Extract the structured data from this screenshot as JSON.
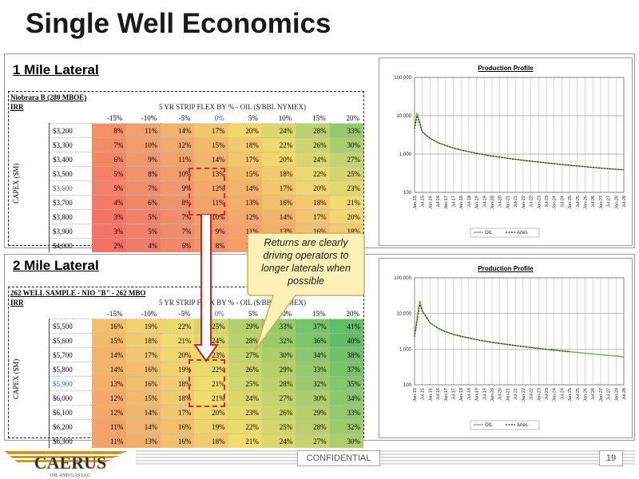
{
  "slide": {
    "title": "Single Well Economics",
    "footer": {
      "confidential": "CONFIDENTIAL",
      "page_number": "19",
      "logo_text": "CAERUS",
      "logo_subtext": "OIL AND GAS LLC"
    }
  },
  "callout": {
    "text": "Returns are clearly driving operators to longer laterals when possible"
  },
  "section1": {
    "title": "1 Mile Lateral",
    "table": {
      "name": "Niobrara B (280 MBOE)",
      "metric": "IRR",
      "flex_label": "5 YR STRIP FLEX BY % - OIL ($/BBL NYMEX)",
      "capex_label": "CAPEX ($M)",
      "columns": [
        "-15%",
        "-10%",
        "-5%",
        "0%",
        "5%",
        "10%",
        "15%",
        "20%"
      ],
      "rows": [
        {
          "capex": "$3,200",
          "values": [
            "8%",
            "11%",
            "14%",
            "17%",
            "20%",
            "24%",
            "28%",
            "33%"
          ]
        },
        {
          "capex": "$3,300",
          "values": [
            "7%",
            "10%",
            "12%",
            "15%",
            "18%",
            "22%",
            "26%",
            "30%"
          ]
        },
        {
          "capex": "$3,400",
          "values": [
            "6%",
            "9%",
            "11%",
            "14%",
            "17%",
            "20%",
            "24%",
            "27%"
          ]
        },
        {
          "capex": "$3,500",
          "values": [
            "5%",
            "8%",
            "10%",
            "13%",
            "15%",
            "18%",
            "22%",
            "25%"
          ]
        },
        {
          "capex": "$3,600",
          "values": [
            "5%",
            "7%",
            "9%",
            "12%",
            "14%",
            "17%",
            "20%",
            "23%"
          ]
        },
        {
          "capex": "$3,700",
          "values": [
            "4%",
            "6%",
            "8%",
            "11%",
            "13%",
            "16%",
            "18%",
            "21%"
          ]
        },
        {
          "capex": "$3,800",
          "values": [
            "3%",
            "5%",
            "7%",
            "10%",
            "12%",
            "14%",
            "17%",
            "20%"
          ]
        },
        {
          "capex": "$3,900",
          "values": [
            "3%",
            "5%",
            "7%",
            "9%",
            "11%",
            "13%",
            "16%",
            "18%"
          ]
        },
        {
          "capex": "$4,000",
          "values": [
            "2%",
            "4%",
            "6%",
            "8%",
            "10%",
            "",
            "",
            ""
          ]
        }
      ],
      "highlight_capex": "$3,600",
      "highlight_flex": "0%"
    }
  },
  "section2": {
    "title": "2 Mile Lateral",
    "table": {
      "name": "262 WELL SAMPLE - NIO \"B\" - 262 MBO",
      "metric": "IRR",
      "flex_label": "5 YR STRIP FLEX BY % - OIL ($/BBL NYMEX)",
      "capex_label": "CAPEX ($M)",
      "columns": [
        "-15%",
        "-10%",
        "-5%",
        "0%",
        "5%",
        "10%",
        "15%",
        "20%"
      ],
      "rows": [
        {
          "capex": "$5,500",
          "values": [
            "16%",
            "19%",
            "22%",
            "25%",
            "29%",
            "33%",
            "37%",
            "41%"
          ]
        },
        {
          "capex": "$5,600",
          "values": [
            "15%",
            "18%",
            "21%",
            "24%",
            "28%",
            "32%",
            "36%",
            "40%"
          ]
        },
        {
          "capex": "$5,700",
          "values": [
            "14%",
            "17%",
            "20%",
            "23%",
            "27%",
            "30%",
            "34%",
            "38%"
          ]
        },
        {
          "capex": "$5,800",
          "values": [
            "14%",
            "16%",
            "19%",
            "22%",
            "26%",
            "29%",
            "33%",
            "37%"
          ]
        },
        {
          "capex": "$5,900",
          "values": [
            "13%",
            "16%",
            "18%",
            "21%",
            "25%",
            "28%",
            "32%",
            "35%"
          ]
        },
        {
          "capex": "$6,000",
          "values": [
            "12%",
            "15%",
            "18%",
            "21%",
            "24%",
            "27%",
            "30%",
            "34%"
          ]
        },
        {
          "capex": "$6,100",
          "values": [
            "12%",
            "14%",
            "17%",
            "20%",
            "23%",
            "26%",
            "29%",
            "33%"
          ]
        },
        {
          "capex": "$6,200",
          "values": [
            "11%",
            "14%",
            "16%",
            "19%",
            "22%",
            "25%",
            "28%",
            "32%"
          ]
        },
        {
          "capex": "$6,300",
          "values": [
            "11%",
            "13%",
            "16%",
            "18%",
            "21%",
            "24%",
            "27%",
            "30%"
          ]
        }
      ],
      "highlight_capex": "$5,900",
      "highlight_flex": "0%"
    }
  },
  "chart_data": [
    {
      "type": "line",
      "title": "Production Profile",
      "y_scale": "log",
      "y_ticks": [
        "100",
        "1,000",
        "10,000",
        "100,000"
      ],
      "ylim": [
        100,
        100000
      ],
      "x_ticks": [
        "Jan-15",
        "Jul-15",
        "Jan-16",
        "Jul-16",
        "Jan-17",
        "Jul-17",
        "Jan-18",
        "Jul-18",
        "Jan-19",
        "Jul-19",
        "Jan-20",
        "Jul-20",
        "Jan-21",
        "Jul-21",
        "Jan-22",
        "Jul-22",
        "Jan-23",
        "Jul-23",
        "Jan-24",
        "Jul-24",
        "Jan-25",
        "Jul-25",
        "Jan-26",
        "Jul-26",
        "Jan-27",
        "Jul-27",
        "Jan-28",
        "Jul-28"
      ],
      "legend": [
        "OIL",
        "Aries"
      ],
      "legend_position": "bottom",
      "grid": true,
      "series": [
        {
          "name": "OIL",
          "color": "#6fb24a",
          "x": [
            "Jan-15",
            "Mar-15",
            "Jul-15",
            "Jan-16",
            "Jul-16",
            "Jan-17",
            "Jul-17",
            "Jan-18",
            "Jan-19",
            "Jan-20",
            "Jan-21",
            "Jan-22",
            "Jan-23",
            "Jan-24",
            "Jan-25",
            "Jan-26",
            "Jan-27",
            "Jan-28",
            "Jul-28"
          ],
          "values": [
            5000,
            12000,
            3800,
            2600,
            2000,
            1700,
            1450,
            1280,
            1050,
            890,
            780,
            690,
            620,
            560,
            510,
            470,
            430,
            400,
            390
          ]
        },
        {
          "name": "Aries",
          "color": "#222222",
          "x": [
            "Jan-15",
            "Mar-15",
            "Jul-15",
            "Jan-16",
            "Jul-16",
            "Jan-17",
            "Jul-17",
            "Jan-18",
            "Jan-19",
            "Jan-20",
            "Jan-21",
            "Jan-22",
            "Jan-23",
            "Jan-24",
            "Jan-25",
            "Jan-26",
            "Jan-27",
            "Jan-28",
            "Jul-28"
          ],
          "values": [
            4500,
            10000,
            3700,
            2550,
            1980,
            1680,
            1440,
            1270,
            1040,
            885,
            775,
            688,
            618,
            558,
            508,
            468,
            430,
            400,
            390
          ]
        }
      ]
    },
    {
      "type": "line",
      "title": "Production Profile",
      "y_scale": "log",
      "y_ticks": [
        "100",
        "1,000",
        "10,000",
        "100,000"
      ],
      "ylim": [
        100,
        100000
      ],
      "x_ticks": [
        "Jan-15",
        "Jul-15",
        "Jan-16",
        "Jul-16",
        "Jan-17",
        "Jul-17",
        "Jan-18",
        "Jul-18",
        "Jan-19",
        "Jul-19",
        "Jan-20",
        "Jul-20",
        "Jan-21",
        "Jul-21",
        "Jan-22",
        "Jul-22",
        "Jan-23",
        "Jul-23",
        "Jan-24",
        "Jul-24",
        "Jan-25",
        "Jul-25",
        "Jan-26",
        "Jul-26",
        "Jan-27",
        "Jul-27",
        "Jan-28",
        "Jul-28"
      ],
      "legend": [
        "OIL",
        "Aries"
      ],
      "legend_position": "bottom",
      "grid": true,
      "series": [
        {
          "name": "OIL",
          "color": "#6fb24a",
          "x": [
            "Jan-15",
            "May-15",
            "Jul-15",
            "Jan-16",
            "Jul-16",
            "Jan-17",
            "Jul-17",
            "Jan-18",
            "Jan-19",
            "Jan-20",
            "Jan-21",
            "Jan-22",
            "Jan-23",
            "Jan-24",
            "Jan-25",
            "Jan-26",
            "Jan-27",
            "Jan-28",
            "Jul-28"
          ],
          "values": [
            2500,
            23000,
            12000,
            5500,
            3900,
            3100,
            2600,
            2300,
            1850,
            1550,
            1350,
            1180,
            1050,
            940,
            850,
            770,
            700,
            640,
            600
          ]
        },
        {
          "name": "Aries",
          "color": "#222222",
          "x": [
            "Jan-15",
            "May-15",
            "Jul-15",
            "Jan-16",
            "Jul-16",
            "Jan-17",
            "Jul-17",
            "Jan-18",
            "Jan-19",
            "Jan-20",
            "Jan-21",
            "Jan-22",
            "Jan-23",
            "Jan-24",
            "Jan-25"
          ],
          "values": [
            2200,
            18000,
            11500,
            5400,
            3850,
            3080,
            2590,
            2290,
            1840,
            1545,
            1345,
            1178,
            1048,
            938,
            848
          ]
        }
      ]
    }
  ],
  "colors": {
    "callout_fill": "#fdf1b8",
    "callout_border": "#c9b15a",
    "highlight_box": "#e0291f",
    "arrow": "#d42020",
    "accent_blue": "#3c5aa8"
  }
}
